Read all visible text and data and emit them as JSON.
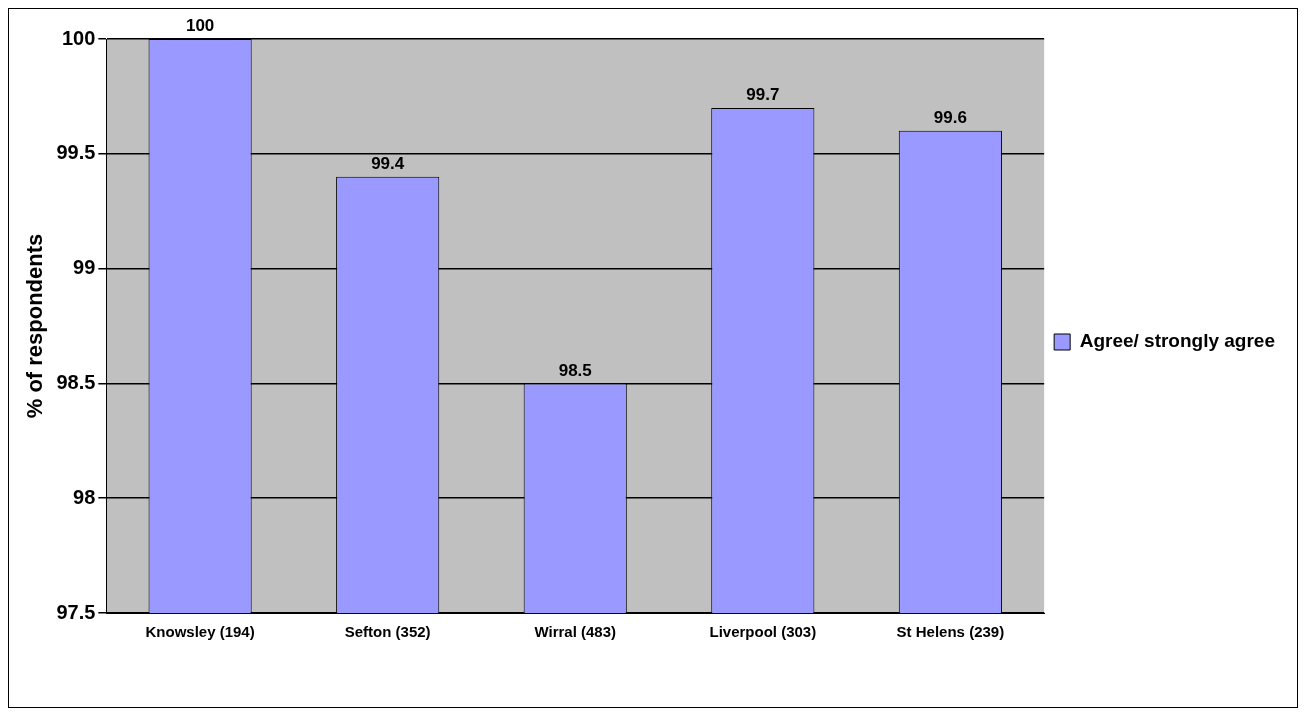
{
  "chart_data": {
    "type": "bar",
    "ylabel": "% of respondents",
    "categories": [
      "Knowsley (194)",
      "Sefton (352)",
      "Wirral (483)",
      "Liverpool (303)",
      "St Helens (239)"
    ],
    "series": [
      {
        "name": "Agree/ strongly agree",
        "color": "#9999ff",
        "values": [
          100,
          99.4,
          98.5,
          99.7,
          99.6
        ]
      }
    ],
    "ylim": [
      97.5,
      100
    ],
    "yticks": [
      97.5,
      98,
      98.5,
      99,
      99.5,
      100
    ],
    "grid": "y",
    "legend": "right",
    "data_labels": true
  }
}
